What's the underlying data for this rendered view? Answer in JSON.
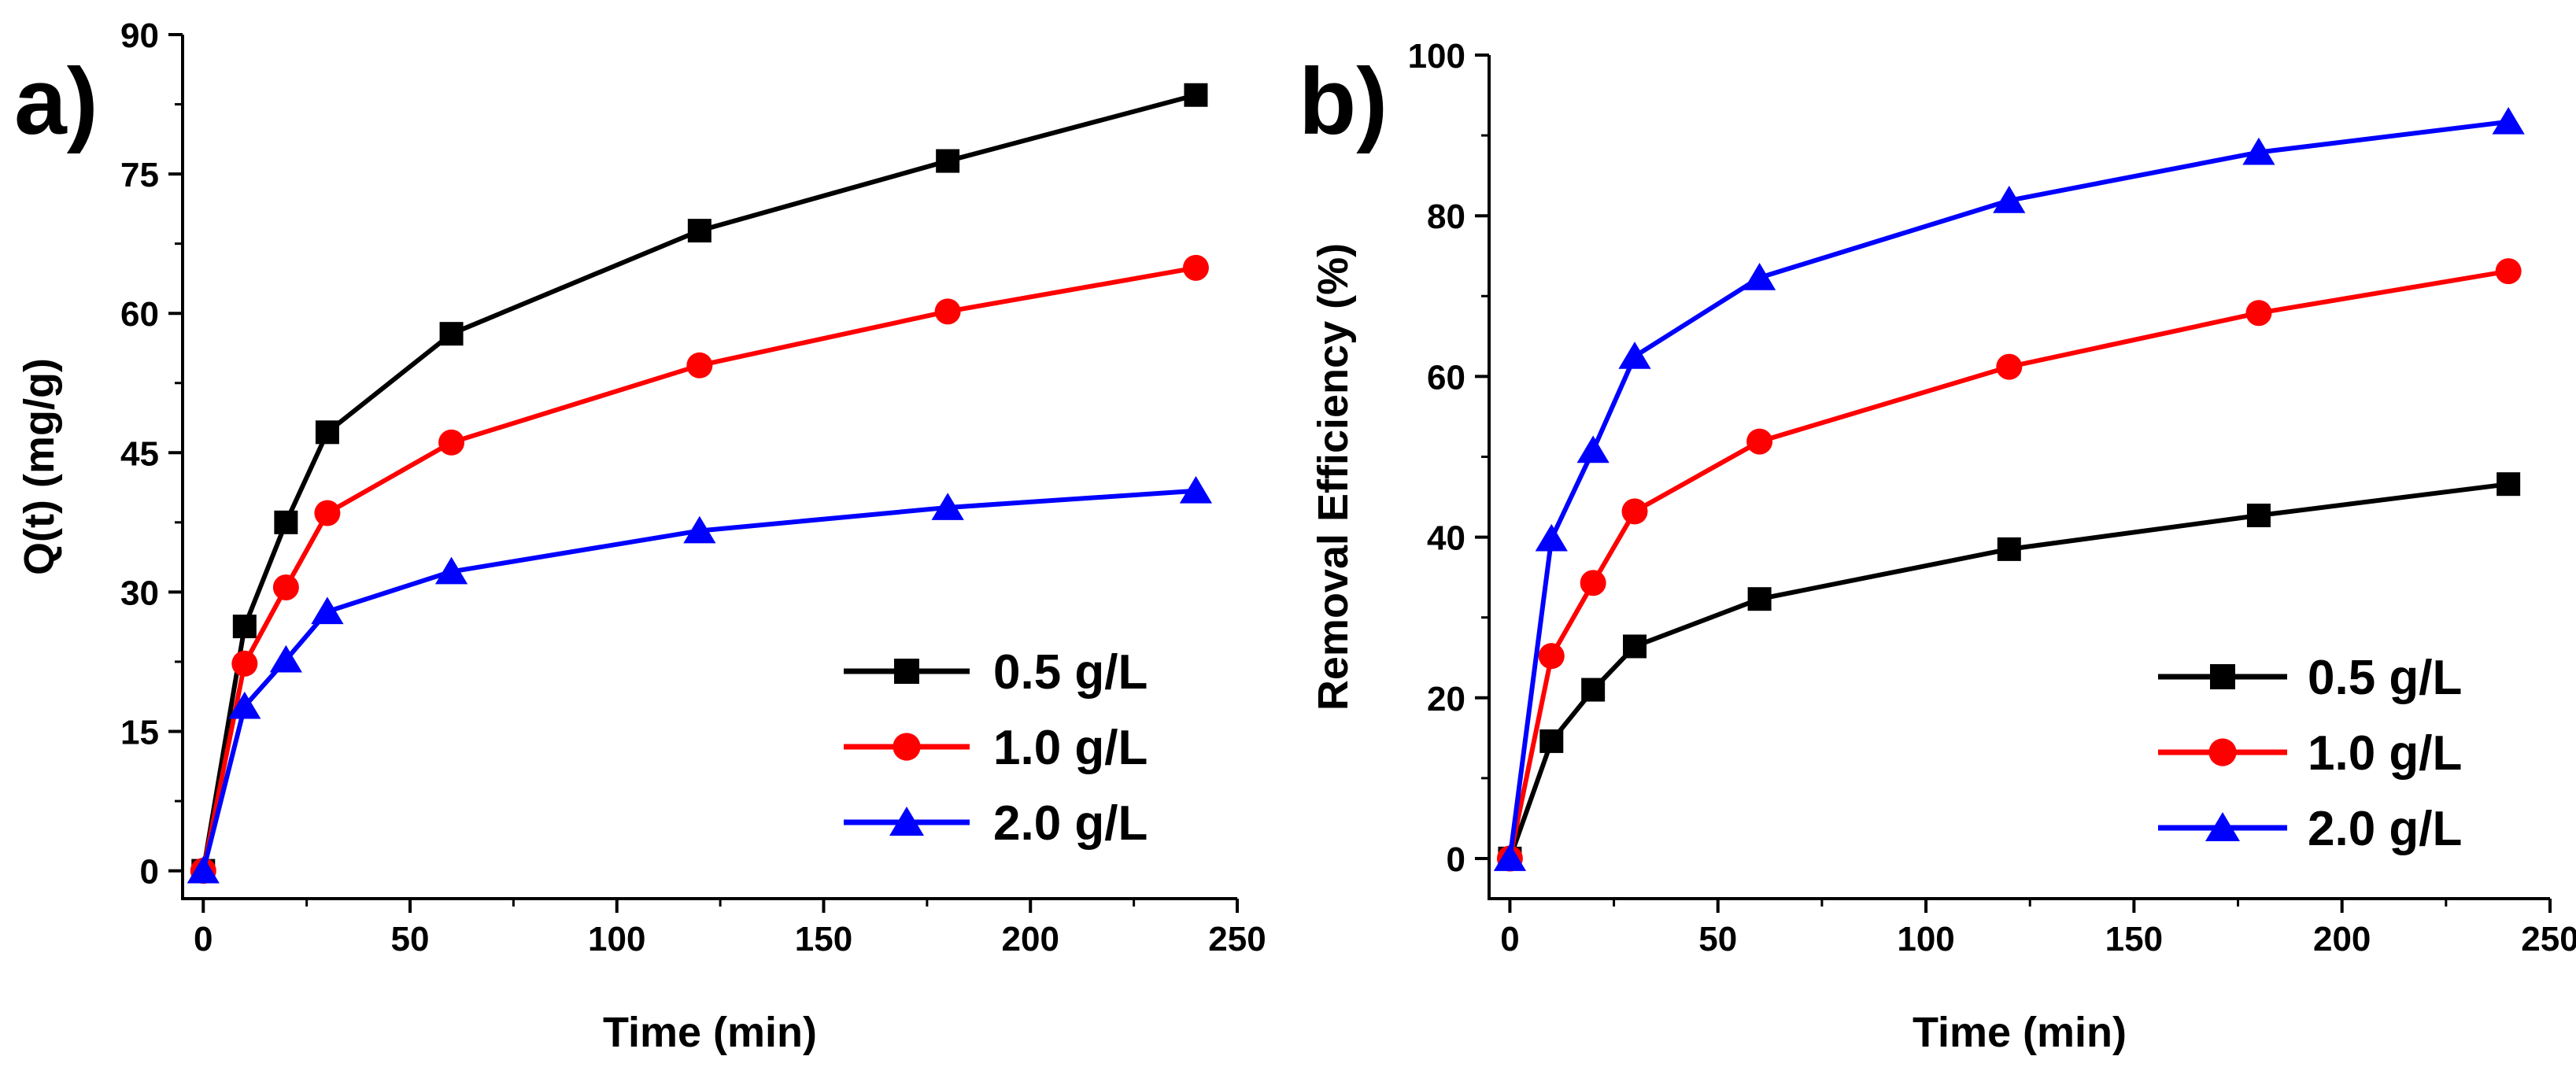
{
  "chart_data": [
    {
      "type": "line",
      "panel_label": "a)",
      "xlabel": "Time (min)",
      "ylabel": "Q(t) (mg/g)",
      "xlim": [
        -5,
        250
      ],
      "ylim": [
        -3,
        90
      ],
      "xticks": [
        0,
        50,
        100,
        150,
        200,
        250
      ],
      "yticks": [
        0,
        15,
        30,
        45,
        60,
        75,
        90
      ],
      "x": [
        0,
        10,
        20,
        30,
        60,
        120,
        180,
        240
      ],
      "series": [
        {
          "name": "0.5 g/L",
          "color": "#000000",
          "marker": "square",
          "values": [
            0,
            26.3,
            37.5,
            47.2,
            57.8,
            68.9,
            76.4,
            83.5
          ]
        },
        {
          "name": "1.0 g/L",
          "color": "#ff0000",
          "marker": "circle",
          "values": [
            0,
            22.3,
            30.5,
            38.5,
            46.1,
            54.4,
            60.2,
            64.9
          ]
        },
        {
          "name": "2.0 g/L",
          "color": "#0000ff",
          "marker": "triangle",
          "values": [
            0,
            17.7,
            22.7,
            27.9,
            32.2,
            36.6,
            39.1,
            40.9
          ]
        }
      ],
      "legend_position": "bottom-right"
    },
    {
      "type": "line",
      "panel_label": "b)",
      "xlabel": "Time (min)",
      "ylabel": "Removal Efficiency (%)",
      "xlim": [
        -5,
        250
      ],
      "ylim": [
        -5,
        100
      ],
      "xticks": [
        0,
        50,
        100,
        150,
        200,
        250
      ],
      "yticks": [
        0,
        20,
        40,
        60,
        80,
        100
      ],
      "x": [
        0,
        10,
        20,
        30,
        60,
        120,
        180,
        240
      ],
      "series": [
        {
          "name": "0.5 g/L",
          "color": "#000000",
          "marker": "square",
          "values": [
            0,
            14.6,
            21.0,
            26.4,
            32.3,
            38.5,
            42.7,
            46.6
          ]
        },
        {
          "name": "1.0 g/L",
          "color": "#ff0000",
          "marker": "circle",
          "values": [
            0,
            25.2,
            34.3,
            43.2,
            51.9,
            61.2,
            67.9,
            73.1
          ]
        },
        {
          "name": "2.0 g/L",
          "color": "#0000ff",
          "marker": "triangle",
          "values": [
            0,
            39.8,
            50.8,
            62.5,
            72.3,
            81.9,
            87.9,
            91.7
          ]
        }
      ],
      "legend_position": "bottom-right"
    }
  ]
}
